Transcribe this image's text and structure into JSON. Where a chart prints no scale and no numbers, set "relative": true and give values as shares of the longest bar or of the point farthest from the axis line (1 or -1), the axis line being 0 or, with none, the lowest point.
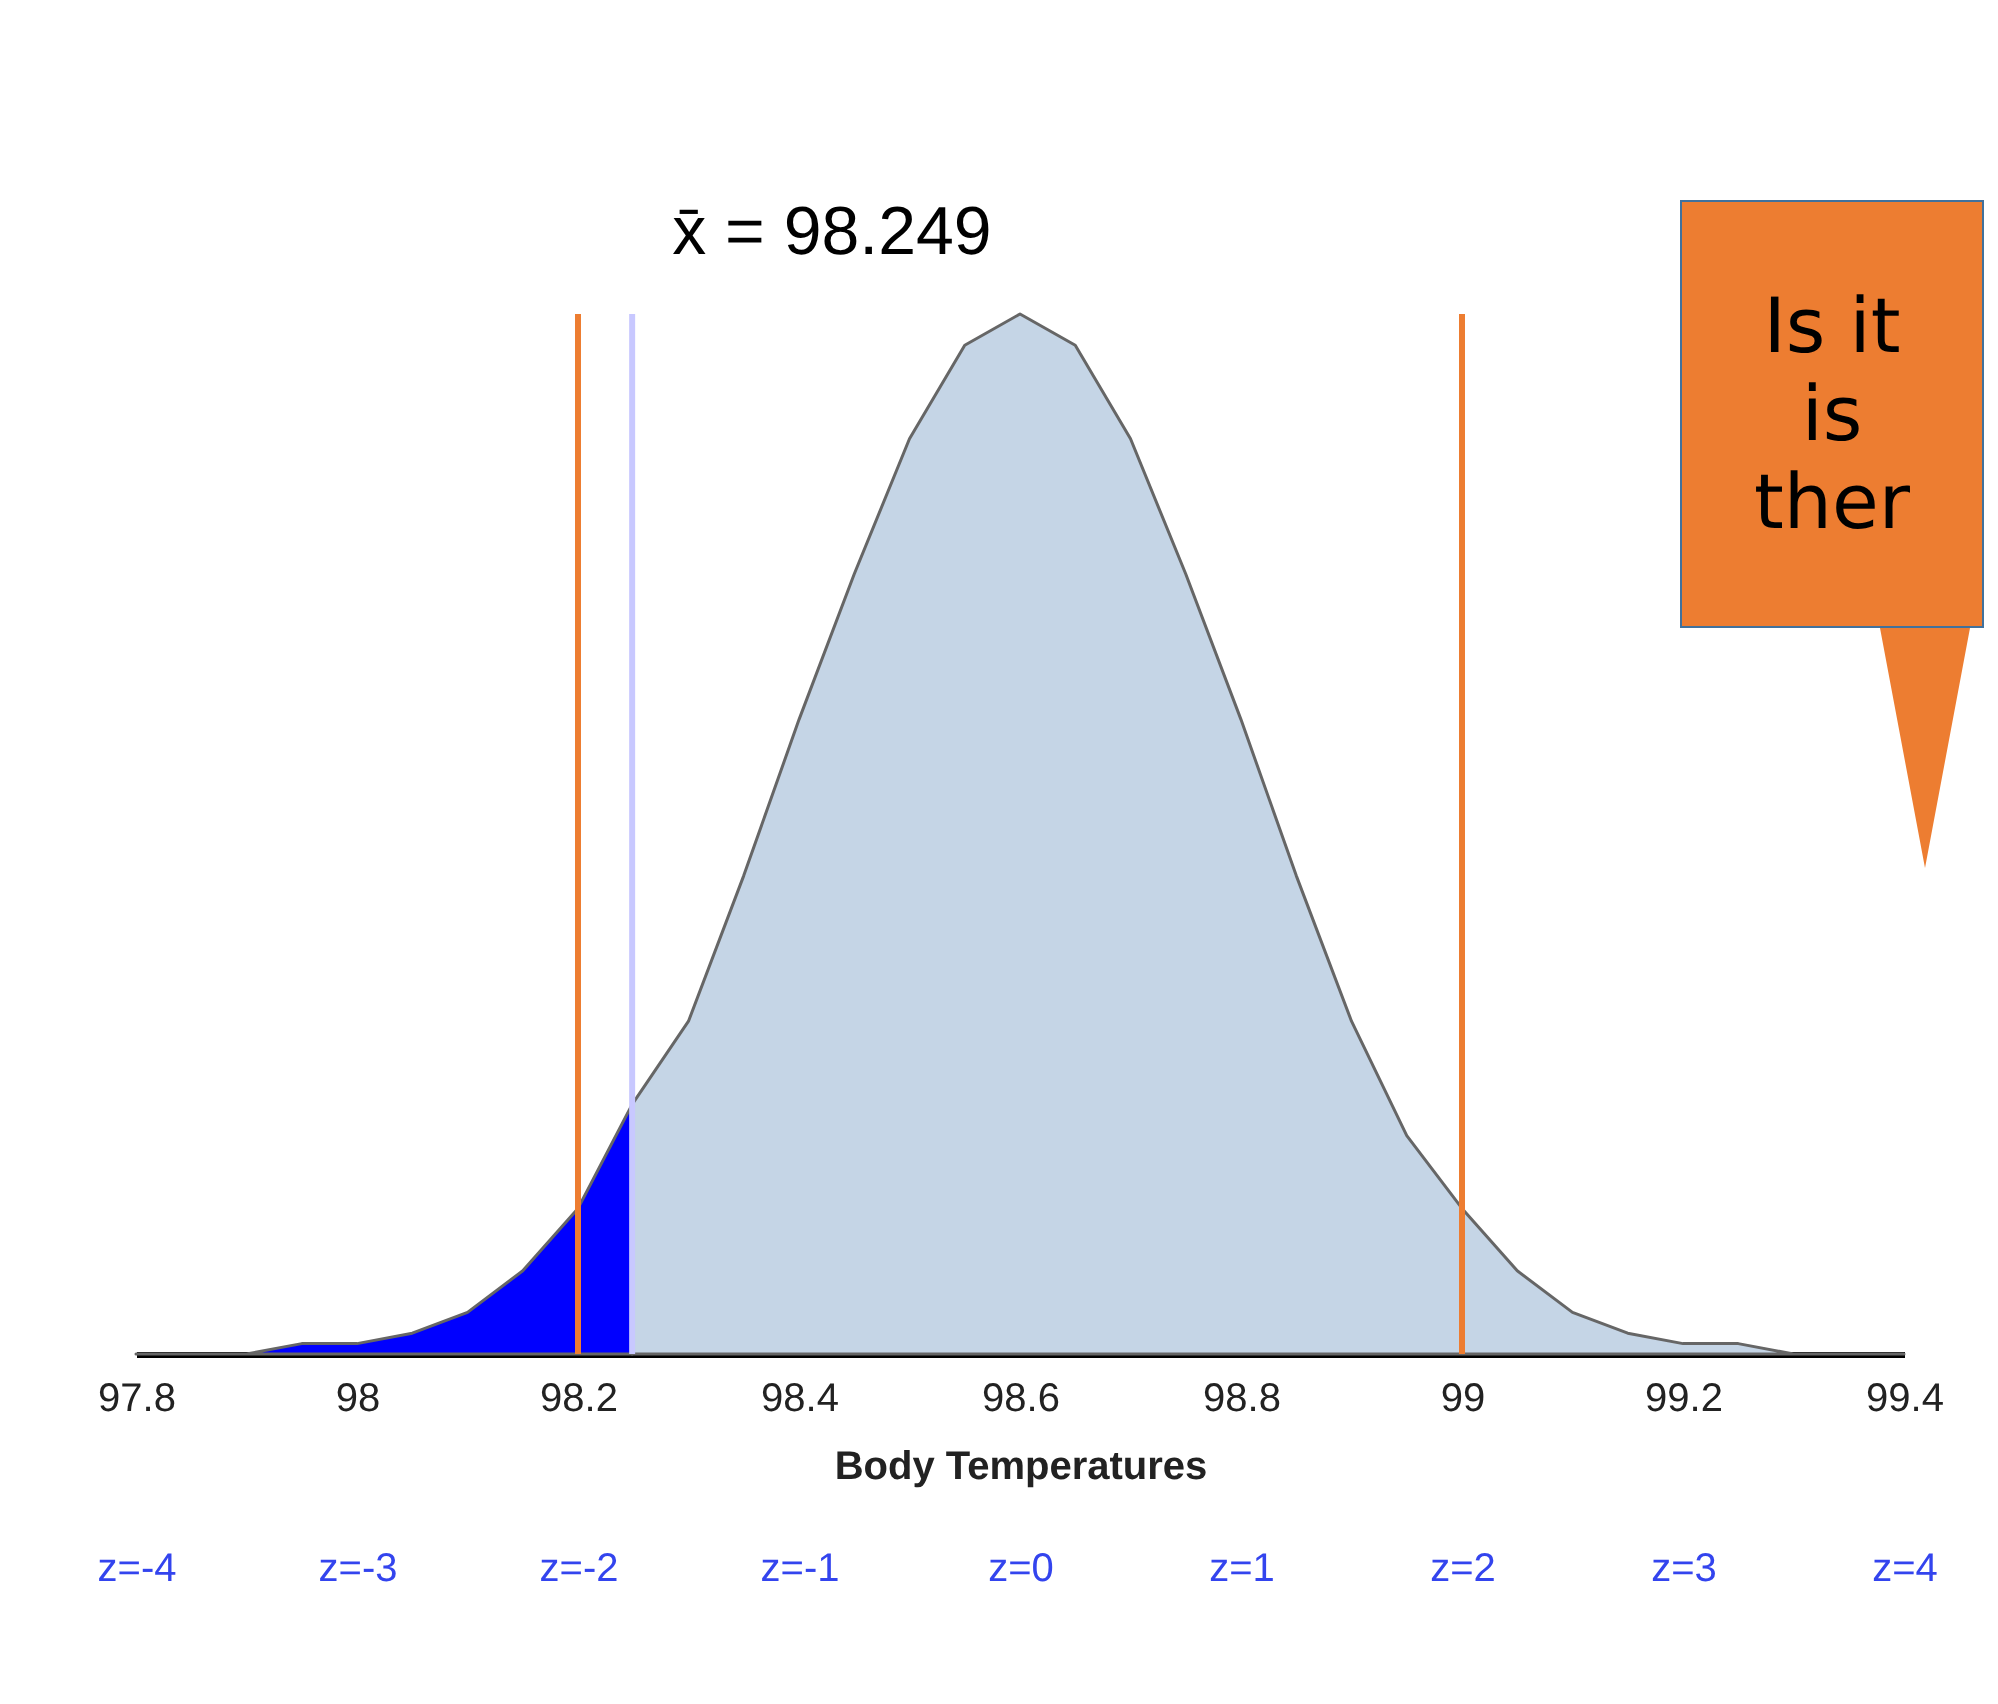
{
  "chart_data": {
    "type": "area",
    "xlabel": "Body Temperatures",
    "relative": true,
    "xlim": [
      97.8,
      99.4
    ],
    "xticks": [
      97.8,
      98,
      98.2,
      98.4,
      98.6,
      98.8,
      99,
      99.2,
      99.4
    ],
    "x2lim": [
      -4,
      4
    ],
    "x2ticks": [
      {
        "value": -4,
        "label": "z=-4"
      },
      {
        "value": -3,
        "label": "z=-3"
      },
      {
        "value": -2,
        "label": "z=-2"
      },
      {
        "value": -1,
        "label": "z=-1"
      },
      {
        "value": 0,
        "label": "z=0"
      },
      {
        "value": 1,
        "label": "z=1"
      },
      {
        "value": 2,
        "label": "z=2"
      },
      {
        "value": 3,
        "label": "z=3"
      },
      {
        "value": 4,
        "label": "z=4"
      }
    ],
    "series": [
      {
        "color": "#0000ff",
        "x": [
          97.8,
          97.85,
          97.9,
          97.95,
          98.0,
          98.05,
          98.1,
          98.15,
          98.2,
          98.249
        ],
        "values": [
          0,
          0,
          0,
          0.01,
          0.01,
          0.02,
          0.04,
          0.08,
          0.14,
          0.24
        ]
      },
      {
        "color": "#c5d5e6",
        "x": [
          98.249,
          98.3,
          98.35,
          98.4,
          98.45,
          98.5,
          98.55,
          98.6,
          98.65,
          98.7,
          98.75,
          98.8,
          98.85,
          98.9,
          98.95,
          99.0,
          99.05,
          99.1,
          99.15,
          99.2,
          99.25,
          99.3,
          99.35,
          99.4
        ],
        "values": [
          0.24,
          0.32,
          0.46,
          0.61,
          0.75,
          0.88,
          0.97,
          1,
          0.97,
          0.88,
          0.75,
          0.61,
          0.46,
          0.32,
          0.21,
          0.14,
          0.08,
          0.04,
          0.02,
          0.01,
          0.01,
          0,
          0,
          0
        ]
      }
    ],
    "ref_lines": [
      {
        "axis": "x",
        "value": 98.249,
        "label": "x̄ = 98.249",
        "color": "#c8c8ff"
      },
      {
        "axis": "x",
        "value": 98.2,
        "color": "#ed7d31"
      },
      {
        "axis": "x",
        "value": 99,
        "color": "#ed7d31"
      }
    ],
    "annotations": [
      "Is it\nis\nther"
    ]
  }
}
